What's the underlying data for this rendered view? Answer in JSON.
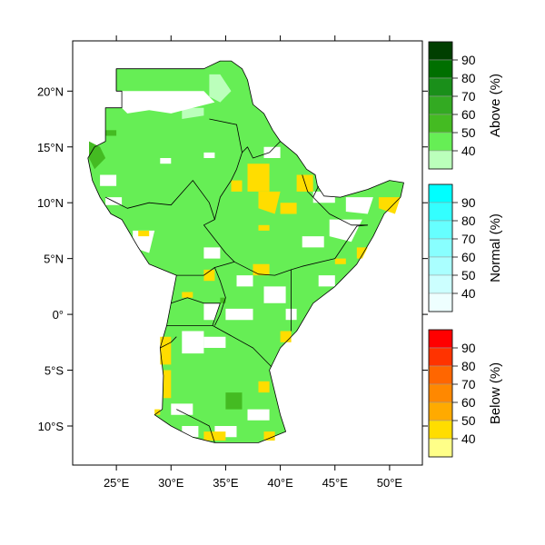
{
  "map": {
    "lon_range": [
      21,
      53
    ],
    "lat_range": [
      -13.5,
      24.5
    ],
    "x_ticks": [
      {
        "lon": 25,
        "label": "25°E"
      },
      {
        "lon": 30,
        "label": "30°E"
      },
      {
        "lon": 35,
        "label": "35°E"
      },
      {
        "lon": 40,
        "label": "40°E"
      },
      {
        "lon": 45,
        "label": "45°E"
      },
      {
        "lon": 50,
        "label": "50°E"
      }
    ],
    "y_ticks": [
      {
        "lat": 20,
        "label": "20°N"
      },
      {
        "lat": 15,
        "label": "15°N"
      },
      {
        "lat": 10,
        "label": "10°N"
      },
      {
        "lat": 5,
        "label": "5°N"
      },
      {
        "lat": 0,
        "label": "0°"
      },
      {
        "lat": -5,
        "label": "5°S"
      },
      {
        "lat": -10,
        "label": "10°S"
      }
    ],
    "base_color": "#66ee55",
    "country_line_color": "#000000",
    "region_polygon": [
      [
        25.5,
        20.0
      ],
      [
        25.5,
        18.5
      ],
      [
        24.0,
        18.5
      ],
      [
        24.0,
        15.5
      ],
      [
        23.0,
        15.0
      ],
      [
        22.4,
        14.0
      ],
      [
        22.8,
        12.0
      ],
      [
        23.5,
        10.5
      ],
      [
        24.5,
        9.0
      ],
      [
        25.5,
        8.5
      ],
      [
        27.0,
        6.0
      ],
      [
        28.0,
        4.5
      ],
      [
        30.5,
        3.5
      ],
      [
        30.0,
        1.0
      ],
      [
        29.6,
        -1.0
      ],
      [
        29.0,
        -3.0
      ],
      [
        29.3,
        -5.5
      ],
      [
        29.2,
        -8.5
      ],
      [
        28.5,
        -9.0
      ],
      [
        30.0,
        -10.0
      ],
      [
        32.0,
        -11.0
      ],
      [
        34.0,
        -11.5
      ],
      [
        36.0,
        -11.5
      ],
      [
        38.0,
        -11.5
      ],
      [
        40.5,
        -10.5
      ],
      [
        40.0,
        -9.0
      ],
      [
        39.5,
        -7.0
      ],
      [
        39.0,
        -5.0
      ],
      [
        40.0,
        -3.0
      ],
      [
        41.5,
        -1.5
      ],
      [
        43.0,
        1.0
      ],
      [
        45.0,
        2.5
      ],
      [
        47.0,
        4.5
      ],
      [
        48.5,
        7.0
      ],
      [
        49.5,
        9.0
      ],
      [
        51.0,
        10.5
      ],
      [
        51.3,
        11.8
      ],
      [
        50.0,
        12.0
      ],
      [
        48.0,
        11.2
      ],
      [
        45.5,
        10.5
      ],
      [
        44.0,
        10.6
      ],
      [
        43.4,
        11.5
      ],
      [
        43.2,
        12.5
      ],
      [
        42.4,
        13.0
      ],
      [
        41.5,
        14.3
      ],
      [
        40.0,
        15.5
      ],
      [
        39.3,
        16.5
      ],
      [
        38.5,
        18.0
      ],
      [
        37.5,
        18.8
      ],
      [
        37.0,
        21.0
      ],
      [
        36.5,
        22.0
      ],
      [
        35.5,
        22.7
      ],
      [
        34.5,
        22.7
      ],
      [
        33.0,
        22.0
      ],
      [
        31.4,
        22.0
      ],
      [
        25.0,
        22.0
      ],
      [
        25.0,
        20.0
      ]
    ],
    "borders": [
      [
        [
          25.0,
          20.0
        ],
        [
          25.0,
          22.0
        ]
      ],
      [
        [
          33.5,
          17.5
        ],
        [
          36.0,
          17.0
        ],
        [
          36.5,
          14.5
        ],
        [
          37.0,
          15.0
        ],
        [
          37.5,
          14.0
        ],
        [
          39.0,
          14.5
        ],
        [
          40.0,
          15.5
        ]
      ],
      [
        [
          36.5,
          14.5
        ],
        [
          36.0,
          13.0
        ],
        [
          35.5,
          12.0
        ],
        [
          34.5,
          10.5
        ],
        [
          34.0,
          8.5
        ],
        [
          33.0,
          8.0
        ],
        [
          35.0,
          5.5
        ],
        [
          35.8,
          4.7
        ]
      ],
      [
        [
          24.0,
          10.5
        ],
        [
          26.0,
          9.5
        ],
        [
          28.0,
          10.0
        ],
        [
          30.0,
          9.8
        ],
        [
          32.0,
          12.0
        ],
        [
          33.5,
          10.0
        ],
        [
          34.0,
          8.5
        ]
      ],
      [
        [
          35.8,
          4.7
        ],
        [
          38.0,
          3.6
        ],
        [
          39.5,
          3.5
        ],
        [
          41.0,
          4.0
        ],
        [
          42.0,
          4.3
        ],
        [
          45.0,
          5.0
        ],
        [
          47.0,
          7.9
        ],
        [
          48.0,
          8.0
        ]
      ],
      [
        [
          42.0,
          12.5
        ],
        [
          42.5,
          11.0
        ],
        [
          43.0,
          10.5
        ],
        [
          43.5,
          11.5
        ]
      ],
      [
        [
          43.0,
          10.5
        ],
        [
          44.5,
          9.0
        ],
        [
          46.5,
          8.0
        ],
        [
          48.0,
          8.0
        ]
      ],
      [
        [
          30.5,
          3.5
        ],
        [
          33.0,
          3.5
        ],
        [
          34.0,
          4.2
        ],
        [
          35.8,
          4.7
        ]
      ],
      [
        [
          30.0,
          1.0
        ],
        [
          31.5,
          1.5
        ],
        [
          33.0,
          1.0
        ],
        [
          34.5,
          1.0
        ],
        [
          33.8,
          -1.0
        ]
      ],
      [
        [
          34.0,
          4.2
        ],
        [
          34.5,
          3.0
        ],
        [
          35.0,
          1.5
        ],
        [
          34.5,
          0.0
        ],
        [
          34.0,
          -1.0
        ]
      ],
      [
        [
          33.8,
          -1.0
        ],
        [
          37.5,
          -3.0
        ],
        [
          39.2,
          -4.7
        ]
      ],
      [
        [
          41.0,
          4.0
        ],
        [
          41.0,
          2.5
        ],
        [
          41.0,
          -1.5
        ]
      ],
      [
        [
          29.6,
          -1.0
        ],
        [
          30.5,
          -1.0
        ],
        [
          31.0,
          -1.0
        ],
        [
          33.8,
          -1.0
        ]
      ],
      [
        [
          29.0,
          -3.0
        ],
        [
          30.0,
          -2.5
        ],
        [
          30.5,
          -2.0
        ]
      ],
      [
        [
          30.5,
          -8.5
        ],
        [
          32.5,
          -9.5
        ],
        [
          33.5,
          -10.0
        ],
        [
          34.0,
          -11.5
        ]
      ]
    ],
    "patches_above40": [
      [
        [
          33.5,
          21.5
        ],
        [
          34.5,
          21.5
        ],
        [
          35.5,
          20.0
        ],
        [
          34.5,
          19.0
        ],
        [
          33.5,
          19.5
        ]
      ],
      [
        [
          31.0,
          18.5
        ],
        [
          33.0,
          18.5
        ],
        [
          33.0,
          17.8
        ],
        [
          31.0,
          17.5
        ]
      ]
    ],
    "patches_white": [
      [
        [
          25.5,
          20.0
        ],
        [
          33.0,
          20.0
        ],
        [
          34.0,
          19.0
        ],
        [
          32.0,
          18.5
        ],
        [
          30.0,
          18.0
        ],
        [
          28.0,
          18.3
        ],
        [
          26.0,
          18.0
        ],
        [
          25.5,
          18.5
        ]
      ],
      [
        [
          29.0,
          14.0
        ],
        [
          30.0,
          14.0
        ],
        [
          30.0,
          13.5
        ],
        [
          29.0,
          13.5
        ]
      ],
      [
        [
          33.0,
          14.5
        ],
        [
          34.0,
          14.5
        ],
        [
          34.0,
          14.0
        ],
        [
          33.0,
          14.0
        ]
      ],
      [
        [
          38.5,
          15.0
        ],
        [
          40.0,
          15.0
        ],
        [
          40.0,
          14.0
        ],
        [
          38.5,
          14.0
        ]
      ],
      [
        [
          23.5,
          12.5
        ],
        [
          25.0,
          12.5
        ],
        [
          25.0,
          11.5
        ],
        [
          23.5,
          11.5
        ]
      ],
      [
        [
          24.0,
          10.5
        ],
        [
          25.5,
          10.5
        ],
        [
          25.5,
          9.8
        ],
        [
          24.0,
          9.8
        ]
      ],
      [
        [
          26.5,
          7.5
        ],
        [
          28.5,
          7.5
        ],
        [
          28.0,
          5.5
        ],
        [
          26.5,
          6.0
        ]
      ],
      [
        [
          33.0,
          6.0
        ],
        [
          34.5,
          6.0
        ],
        [
          34.5,
          5.0
        ],
        [
          33.0,
          5.0
        ]
      ],
      [
        [
          43.0,
          11.0
        ],
        [
          45.0,
          11.0
        ],
        [
          45.0,
          10.0
        ],
        [
          43.0,
          10.0
        ]
      ],
      [
        [
          46.0,
          10.5
        ],
        [
          48.5,
          10.5
        ],
        [
          48.0,
          9.0
        ],
        [
          46.0,
          9.2
        ]
      ],
      [
        [
          44.5,
          8.5
        ],
        [
          47.5,
          8.5
        ],
        [
          46.5,
          6.5
        ],
        [
          44.5,
          7.0
        ]
      ],
      [
        [
          42.0,
          7.0
        ],
        [
          44.0,
          7.0
        ],
        [
          44.0,
          6.0
        ],
        [
          42.0,
          6.0
        ]
      ],
      [
        [
          43.5,
          3.5
        ],
        [
          45.0,
          3.5
        ],
        [
          45.0,
          2.5
        ],
        [
          43.5,
          2.5
        ]
      ],
      [
        [
          36.0,
          3.5
        ],
        [
          37.5,
          3.5
        ],
        [
          37.5,
          2.5
        ],
        [
          36.0,
          2.5
        ]
      ],
      [
        [
          38.5,
          2.5
        ],
        [
          40.5,
          2.5
        ],
        [
          40.5,
          1.0
        ],
        [
          38.5,
          1.0
        ]
      ],
      [
        [
          40.5,
          0.5
        ],
        [
          41.5,
          0.5
        ],
        [
          41.5,
          -0.5
        ],
        [
          40.5,
          -0.5
        ]
      ],
      [
        [
          35.0,
          0.5
        ],
        [
          37.5,
          0.5
        ],
        [
          37.5,
          -0.5
        ],
        [
          35.0,
          -0.5
        ]
      ],
      [
        [
          33.0,
          1.0
        ],
        [
          34.5,
          1.0
        ],
        [
          34.0,
          -0.5
        ],
        [
          33.0,
          -0.5
        ]
      ],
      [
        [
          31.0,
          -1.5
        ],
        [
          33.0,
          -1.5
        ],
        [
          33.0,
          -3.5
        ],
        [
          31.0,
          -3.5
        ]
      ],
      [
        [
          33.0,
          -2.0
        ],
        [
          35.0,
          -2.0
        ],
        [
          35.0,
          -3.0
        ],
        [
          33.0,
          -3.0
        ]
      ],
      [
        [
          30.0,
          -8.0
        ],
        [
          32.0,
          -8.0
        ],
        [
          32.0,
          -9.0
        ],
        [
          30.0,
          -9.0
        ]
      ],
      [
        [
          37.0,
          -8.5
        ],
        [
          39.0,
          -8.5
        ],
        [
          39.0,
          -9.5
        ],
        [
          37.0,
          -9.5
        ]
      ],
      [
        [
          34.0,
          -10.0
        ],
        [
          36.0,
          -10.0
        ],
        [
          36.0,
          -11.0
        ],
        [
          34.0,
          -11.0
        ]
      ],
      [
        [
          31.0,
          -10.0
        ],
        [
          32.5,
          -10.0
        ],
        [
          32.5,
          -11.0
        ],
        [
          31.0,
          -11.0
        ]
      ]
    ],
    "patches_dark50": [
      [
        [
          22.5,
          15.5
        ],
        [
          23.5,
          15.0
        ],
        [
          24.0,
          14.0
        ],
        [
          23.0,
          13.0
        ],
        [
          22.5,
          14.0
        ]
      ],
      [
        [
          24.0,
          16.5
        ],
        [
          25.0,
          16.5
        ],
        [
          25.0,
          16.0
        ],
        [
          24.0,
          16.0
        ]
      ],
      [
        [
          35.0,
          -7.0
        ],
        [
          36.5,
          -7.0
        ],
        [
          36.5,
          -8.5
        ],
        [
          35.0,
          -8.5
        ]
      ],
      [
        [
          34.5,
          1.5
        ],
        [
          35.0,
          1.5
        ],
        [
          35.0,
          1.0
        ],
        [
          34.5,
          1.0
        ]
      ]
    ],
    "patches_below40": [
      [
        [
          37.0,
          13.5
        ],
        [
          39.0,
          13.5
        ],
        [
          39.0,
          11.0
        ],
        [
          37.0,
          11.0
        ]
      ],
      [
        [
          35.5,
          12.0
        ],
        [
          36.5,
          12.0
        ],
        [
          36.5,
          11.0
        ],
        [
          35.5,
          11.0
        ]
      ],
      [
        [
          38.0,
          11.0
        ],
        [
          40.0,
          11.0
        ],
        [
          39.5,
          9.0
        ],
        [
          38.0,
          9.5
        ]
      ],
      [
        [
          41.5,
          12.5
        ],
        [
          43.0,
          12.5
        ],
        [
          43.0,
          11.0
        ],
        [
          41.5,
          11.0
        ]
      ],
      [
        [
          40.0,
          10.0
        ],
        [
          41.5,
          10.0
        ],
        [
          41.5,
          9.0
        ],
        [
          40.0,
          9.0
        ]
      ],
      [
        [
          38.0,
          8.0
        ],
        [
          39.0,
          8.0
        ],
        [
          39.0,
          7.5
        ],
        [
          38.0,
          7.5
        ]
      ],
      [
        [
          49.0,
          10.5
        ],
        [
          51.0,
          10.5
        ],
        [
          50.5,
          9.0
        ],
        [
          49.0,
          9.5
        ]
      ],
      [
        [
          47.0,
          6.0
        ],
        [
          48.0,
          6.0
        ],
        [
          47.5,
          5.0
        ],
        [
          47.0,
          5.0
        ]
      ],
      [
        [
          45.0,
          5.0
        ],
        [
          46.0,
          5.0
        ],
        [
          46.0,
          4.5
        ],
        [
          45.0,
          4.5
        ]
      ],
      [
        [
          33.0,
          4.0
        ],
        [
          34.0,
          4.0
        ],
        [
          34.0,
          3.0
        ],
        [
          33.0,
          3.0
        ]
      ],
      [
        [
          37.5,
          4.5
        ],
        [
          39.0,
          4.5
        ],
        [
          39.0,
          3.5
        ],
        [
          37.5,
          3.5
        ]
      ],
      [
        [
          31.0,
          2.0
        ],
        [
          32.0,
          2.0
        ],
        [
          32.0,
          1.5
        ],
        [
          31.0,
          1.5
        ]
      ],
      [
        [
          29.0,
          -2.0
        ],
        [
          30.0,
          -2.0
        ],
        [
          30.0,
          -4.5
        ],
        [
          29.0,
          -4.5
        ]
      ],
      [
        [
          29.3,
          -5.0
        ],
        [
          30.0,
          -5.0
        ],
        [
          30.0,
          -7.5
        ],
        [
          29.3,
          -7.5
        ]
      ],
      [
        [
          38.0,
          -6.0
        ],
        [
          39.0,
          -6.0
        ],
        [
          39.0,
          -7.0
        ],
        [
          38.0,
          -7.0
        ]
      ],
      [
        [
          40.0,
          -1.5
        ],
        [
          41.0,
          -1.5
        ],
        [
          41.0,
          -2.5
        ],
        [
          40.0,
          -2.5
        ]
      ],
      [
        [
          33.0,
          -10.5
        ],
        [
          35.0,
          -10.5
        ],
        [
          35.0,
          -11.3
        ],
        [
          33.0,
          -11.3
        ]
      ],
      [
        [
          38.5,
          -10.5
        ],
        [
          39.5,
          -10.5
        ],
        [
          39.5,
          -11.3
        ],
        [
          38.5,
          -11.3
        ]
      ],
      [
        [
          28.5,
          -8.5
        ],
        [
          29.0,
          -8.5
        ],
        [
          29.0,
          -9.0
        ],
        [
          28.5,
          -9.0
        ]
      ],
      [
        [
          27.0,
          7.5
        ],
        [
          28.0,
          7.5
        ],
        [
          28.0,
          7.0
        ],
        [
          27.0,
          7.0
        ]
      ]
    ]
  },
  "legend": [
    {
      "title": "Above (%)",
      "labels": [
        "90",
        "80",
        "70",
        "60",
        "50",
        "40"
      ],
      "colors": [
        "#003f00",
        "#006f00",
        "#1a8f1a",
        "#33aa22",
        "#44bb22",
        "#66ee55",
        "#bbffbb"
      ]
    },
    {
      "title": "Normal (%)",
      "labels": [
        "90",
        "80",
        "70",
        "60",
        "50",
        "40"
      ],
      "colors": [
        "#00ffff",
        "#33ffff",
        "#66ffff",
        "#88ffff",
        "#aaffff",
        "#ccffff",
        "#eeffff"
      ]
    },
    {
      "title": "Below (%)",
      "labels": [
        "90",
        "80",
        "70",
        "60",
        "50",
        "40"
      ],
      "colors": [
        "#ff0000",
        "#ff3300",
        "#ff6600",
        "#ff8800",
        "#ffaa00",
        "#ffdd00",
        "#ffff88"
      ]
    }
  ]
}
